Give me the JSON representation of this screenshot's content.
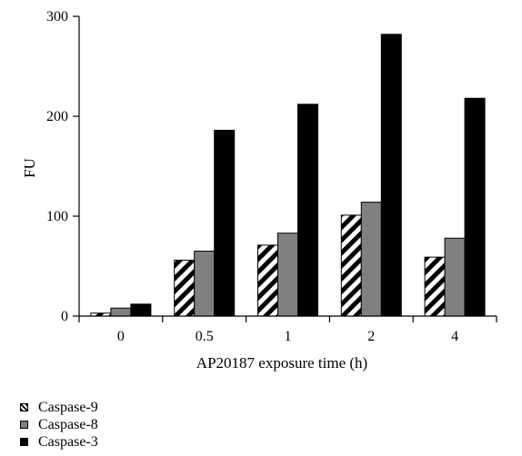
{
  "chart_data": {
    "type": "bar",
    "title": "",
    "xlabel": "AP20187 exposure time (h)",
    "ylabel": "FU",
    "categories": [
      "0",
      "0.5",
      "1",
      "2",
      "4"
    ],
    "ylim": [
      0,
      300
    ],
    "yticks": [
      "0",
      "100",
      "200",
      "300"
    ],
    "series": [
      {
        "name": "Caspase-9",
        "values": [
          3,
          56,
          71,
          101,
          59
        ],
        "color": "#ffffff",
        "pattern": "diagonal-hatch"
      },
      {
        "name": "Caspase-8",
        "values": [
          8,
          65,
          83,
          114,
          78
        ],
        "color": "#808080",
        "pattern": "solid"
      },
      {
        "name": "Caspase-3",
        "values": [
          12,
          186,
          212,
          282,
          218
        ],
        "color": "#000000",
        "pattern": "solid"
      }
    ],
    "grid": false,
    "legend_position": "bottom-left"
  }
}
